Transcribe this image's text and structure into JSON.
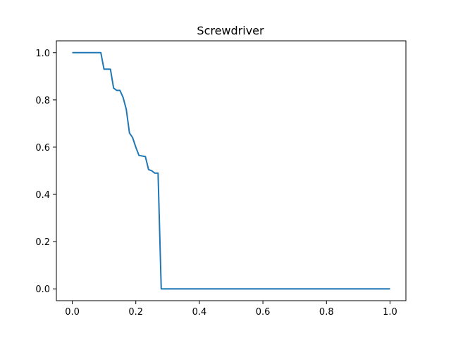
{
  "chart_data": {
    "type": "line",
    "title": "Screwdriver",
    "xlabel": "",
    "ylabel": "",
    "xlim": [
      -0.05,
      1.05
    ],
    "ylim": [
      -0.05,
      1.05
    ],
    "x_ticks": [
      0.0,
      0.2,
      0.4,
      0.6,
      0.8,
      1.0
    ],
    "x_tick_labels": [
      "0.0",
      "0.2",
      "0.4",
      "0.6",
      "0.8",
      "1.0"
    ],
    "y_ticks": [
      0.0,
      0.2,
      0.4,
      0.6,
      0.8,
      1.0
    ],
    "y_tick_labels": [
      "0.0",
      "0.2",
      "0.4",
      "0.6",
      "0.8",
      "1.0"
    ],
    "grid": false,
    "legend": "none",
    "series": [
      {
        "color": "#1f77b4",
        "x": [
          0.0,
          0.09,
          0.1,
          0.12,
          0.13,
          0.14,
          0.15,
          0.16,
          0.17,
          0.18,
          0.19,
          0.2,
          0.21,
          0.23,
          0.24,
          0.25,
          0.26,
          0.27,
          0.28,
          0.3,
          1.0
        ],
        "y": [
          1.0,
          1.0,
          0.93,
          0.93,
          0.85,
          0.84,
          0.84,
          0.81,
          0.76,
          0.66,
          0.64,
          0.6,
          0.565,
          0.56,
          0.505,
          0.5,
          0.49,
          0.49,
          0.0,
          0.0,
          0.0
        ]
      }
    ]
  }
}
